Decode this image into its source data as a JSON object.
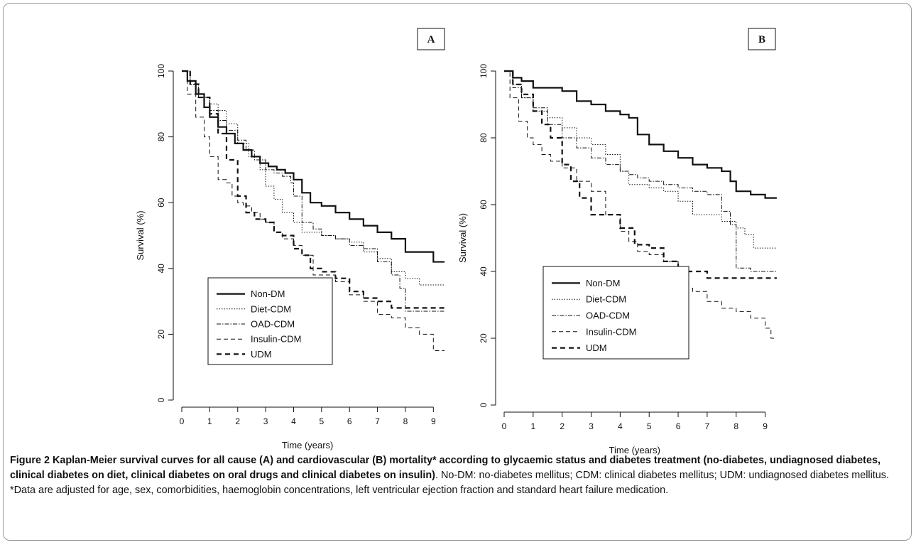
{
  "caption": {
    "bold": "Figure 2 Kaplan-Meier survival curves for all cause (A) and cardiovascular (B) mortality* according to glycaemic status and diabetes treatment (no-diabetes, undiagnosed diabetes, clinical diabetes on diet, clinical diabetes on oral drugs and clinical diabetes on insulin)",
    "rest": ". No-DM: no-diabetes mellitus; CDM: clinical diabetes mellitus; UDM: undiagnosed diabetes mellitus. *Data are adjusted for age, sex, comorbidities, haemoglobin concentrations, left ventricular ejection fraction and standard heart failure medication."
  },
  "chart_data": [
    {
      "panel": "A",
      "type": "line",
      "xlabel": "Time (years)",
      "ylabel": "Survival (%)",
      "xlim": [
        0,
        9.5
      ],
      "ylim": [
        0,
        100
      ],
      "xticks": [
        0,
        1,
        2,
        3,
        4,
        5,
        6,
        7,
        8,
        9
      ],
      "yticks": [
        0,
        20,
        40,
        60,
        80,
        100
      ],
      "legend_position": "bottom-left",
      "series": [
        {
          "name": "Non-DM",
          "style": "solid",
          "x": [
            0,
            0.2,
            0.5,
            0.8,
            1,
            1.3,
            1.6,
            1.9,
            2.2,
            2.5,
            2.8,
            3.1,
            3.4,
            3.7,
            4,
            4.3,
            4.6,
            5,
            5.5,
            6,
            6.5,
            7,
            7.5,
            8,
            8.5,
            9,
            9.4
          ],
          "y": [
            100,
            97,
            93,
            89,
            86,
            83,
            81,
            78,
            76,
            74,
            72,
            71,
            70,
            69,
            67,
            63,
            60,
            59,
            57,
            55,
            53,
            51,
            49,
            45,
            45,
            42,
            42
          ]
        },
        {
          "name": "Diet-CDM",
          "style": "dotted",
          "x": [
            0,
            0.3,
            0.6,
            1,
            1.3,
            1.6,
            2,
            2.4,
            2.8,
            3,
            3.3,
            3.6,
            4,
            4.3,
            4.7,
            5,
            5.5,
            6,
            6.5,
            7,
            7.5,
            8,
            8.5,
            9,
            9.4
          ],
          "y": [
            100,
            96,
            92,
            90,
            88,
            84,
            78,
            74,
            70,
            65,
            61,
            57,
            54,
            51,
            51,
            50,
            49,
            48,
            45,
            43,
            39,
            37,
            35,
            35,
            35
          ]
        },
        {
          "name": "OAD-CDM",
          "style": "dashdot",
          "x": [
            0,
            0.3,
            0.6,
            1,
            1.3,
            1.6,
            2,
            2.3,
            2.6,
            3,
            3.3,
            3.6,
            3.9,
            4,
            4.3,
            4.7,
            5,
            5.5,
            6,
            6.5,
            7,
            7.5,
            7.8,
            8,
            8.5,
            9,
            9.4
          ],
          "y": [
            100,
            96,
            92,
            88,
            85,
            82,
            79,
            76,
            73,
            70,
            69,
            68,
            66,
            62,
            54,
            52,
            50,
            49,
            47,
            46,
            42,
            38,
            34,
            27,
            27,
            27,
            27
          ]
        },
        {
          "name": "Insulin-CDM",
          "style": "dashed",
          "x": [
            0,
            0.2,
            0.5,
            0.8,
            1,
            1.3,
            1.6,
            1.8,
            2,
            2.2,
            2.5,
            2.8,
            3,
            3.3,
            3.6,
            4,
            4.3,
            4.7,
            5,
            5.5,
            6,
            6.5,
            7,
            7.5,
            8,
            8.5,
            9,
            9.4
          ],
          "y": [
            100,
            93,
            86,
            80,
            74,
            67,
            66,
            62,
            60,
            59,
            57,
            55,
            54,
            51,
            49,
            47,
            44,
            38,
            38,
            36,
            32,
            30,
            26,
            25,
            22,
            20,
            15,
            15
          ]
        },
        {
          "name": "UDM",
          "style": "bold-dashed",
          "x": [
            0,
            0.3,
            0.6,
            1,
            1.3,
            1.6,
            2,
            2.3,
            2.6,
            3,
            3.3,
            3.6,
            4,
            4.3,
            4.6,
            5,
            5.5,
            6,
            6.5,
            7,
            7.5,
            8,
            8.5,
            9,
            9.4
          ],
          "y": [
            100,
            96,
            92,
            87,
            81,
            73,
            62,
            57,
            55,
            54,
            51,
            50,
            46,
            44,
            40,
            39,
            37,
            33,
            31,
            30,
            28,
            28,
            28,
            28,
            28
          ]
        }
      ]
    },
    {
      "panel": "B",
      "type": "line",
      "xlabel": "Time (years)",
      "ylabel": "Survival (%)",
      "xlim": [
        0,
        9.5
      ],
      "ylim": [
        0,
        100
      ],
      "xticks": [
        0,
        1,
        2,
        3,
        4,
        5,
        6,
        7,
        8,
        9
      ],
      "yticks": [
        0,
        20,
        40,
        60,
        80,
        100
      ],
      "legend_position": "bottom-left",
      "series": [
        {
          "name": "Non-DM",
          "style": "solid",
          "x": [
            0,
            0.3,
            0.6,
            1,
            1.5,
            2,
            2.5,
            3,
            3.5,
            4,
            4.3,
            4.6,
            5,
            5.5,
            6,
            6.5,
            7,
            7.5,
            7.8,
            8,
            8.5,
            9,
            9.4
          ],
          "y": [
            100,
            98,
            97,
            95,
            95,
            94,
            91,
            90,
            88,
            87,
            86,
            81,
            78,
            76,
            74,
            72,
            71,
            70,
            67,
            64,
            63,
            62,
            62
          ]
        },
        {
          "name": "Diet-CDM",
          "style": "dotted",
          "x": [
            0,
            0.3,
            0.6,
            1,
            1.5,
            2,
            2.5,
            3,
            3.5,
            4,
            4.3,
            4.6,
            5,
            5.5,
            6,
            6.5,
            7,
            7.5,
            8,
            8.3,
            8.6,
            9,
            9.4
          ],
          "y": [
            100,
            96,
            92,
            88,
            86,
            83,
            80,
            78,
            75,
            70,
            66,
            66,
            65,
            64,
            61,
            57,
            57,
            55,
            53,
            51,
            47,
            47,
            47
          ]
        },
        {
          "name": "OAD-CDM",
          "style": "dashdot",
          "x": [
            0,
            0.3,
            0.6,
            1,
            1.5,
            2,
            2.5,
            3,
            3.5,
            4,
            4.3,
            4.6,
            5,
            5.5,
            6,
            6.5,
            7,
            7.5,
            7.8,
            8,
            8.5,
            9,
            9.4
          ],
          "y": [
            100,
            95,
            92,
            89,
            84,
            80,
            77,
            74,
            72,
            70,
            69,
            68,
            67,
            66,
            65,
            64,
            63,
            58,
            54,
            41,
            40,
            40,
            40
          ]
        },
        {
          "name": "Insulin-CDM",
          "style": "dashed",
          "x": [
            0,
            0.2,
            0.5,
            0.8,
            1,
            1.3,
            1.6,
            2,
            2.5,
            3,
            3.5,
            4,
            4.3,
            4.6,
            5,
            5.5,
            6,
            6.5,
            7,
            7.5,
            8,
            8.5,
            9,
            9.2,
            9.4
          ],
          "y": [
            100,
            92,
            85,
            80,
            78,
            75,
            73,
            71,
            67,
            64,
            57,
            52,
            49,
            46,
            45,
            43,
            35,
            34,
            31,
            29,
            28,
            26,
            23,
            20,
            20
          ]
        },
        {
          "name": "UDM",
          "style": "bold-dashed",
          "x": [
            0,
            0.3,
            0.6,
            1,
            1.3,
            1.6,
            2,
            2.3,
            2.6,
            3,
            3.5,
            4,
            4.5,
            5,
            5.5,
            6,
            6.5,
            7,
            7.5,
            8,
            8.5,
            9,
            9.4
          ],
          "y": [
            100,
            96,
            93,
            88,
            84,
            80,
            72,
            67,
            62,
            57,
            57,
            53,
            48,
            47,
            43,
            40,
            40,
            38,
            38,
            38,
            38,
            38,
            38
          ]
        }
      ]
    }
  ]
}
